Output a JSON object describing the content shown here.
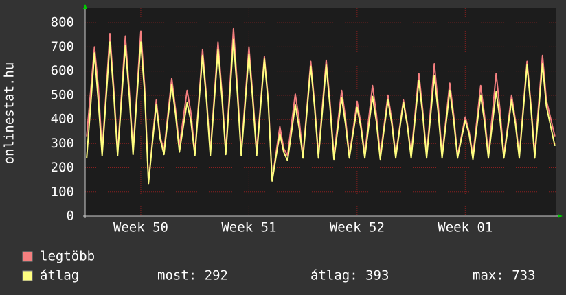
{
  "chart_data": {
    "type": "line",
    "ylabel": "onlinestat.hu",
    "xlim": [
      0,
      30.5
    ],
    "xticks": [
      {
        "value": 3.6,
        "label": "Week 50"
      },
      {
        "value": 10.6,
        "label": "Week 51"
      },
      {
        "value": 17.6,
        "label": "Week 52"
      },
      {
        "value": 24.6,
        "label": "Week 01"
      }
    ],
    "ylim": [
      0,
      860
    ],
    "yticks": [
      0,
      100,
      200,
      300,
      400,
      500,
      600,
      700,
      800
    ],
    "grid": true,
    "x": [
      0.1,
      0.35,
      0.6,
      0.85,
      1.1,
      1.35,
      1.6,
      1.85,
      2.1,
      2.35,
      2.6,
      2.85,
      3.1,
      3.35,
      3.6,
      3.85,
      4.1,
      4.35,
      4.6,
      4.85,
      5.1,
      5.35,
      5.6,
      5.85,
      6.1,
      6.35,
      6.6,
      6.85,
      7.1,
      7.35,
      7.6,
      7.85,
      8.1,
      8.35,
      8.6,
      8.85,
      9.1,
      9.35,
      9.6,
      9.85,
      10.1,
      10.35,
      10.6,
      10.85,
      11.1,
      11.35,
      11.6,
      11.85,
      12.1,
      12.35,
      12.6,
      12.85,
      13.1,
      13.35,
      13.6,
      13.85,
      14.1,
      14.35,
      14.6,
      14.85,
      15.1,
      15.35,
      15.6,
      15.85,
      16.1,
      16.35,
      16.6,
      16.85,
      17.1,
      17.35,
      17.6,
      17.85,
      18.1,
      18.35,
      18.6,
      18.85,
      19.1,
      19.35,
      19.6,
      19.85,
      20.1,
      20.35,
      20.6,
      20.85,
      21.1,
      21.35,
      21.6,
      21.85,
      22.1,
      22.35,
      22.6,
      22.85,
      23.1,
      23.35,
      23.6,
      23.85,
      24.1,
      24.35,
      24.6,
      24.85,
      25.1,
      25.35,
      25.6,
      25.85,
      26.1,
      26.35,
      26.6,
      26.85,
      27.1,
      27.35,
      27.6,
      27.85,
      28.1,
      28.35,
      28.6,
      28.85,
      29.1,
      29.35,
      29.6,
      29.85,
      30.4
    ],
    "series": [
      {
        "name": "legtöbb",
        "color": "#f47f7f",
        "values": [
          330,
          515,
          700,
          535,
          270,
          510,
          755,
          530,
          265,
          505,
          745,
          525,
          270,
          515,
          765,
          535,
          140,
          310,
          480,
          330,
          270,
          420,
          570,
          440,
          290,
          405,
          520,
          425,
          260,
          475,
          690,
          495,
          265,
          490,
          720,
          510,
          270,
          520,
          775,
          540,
          265,
          480,
          700,
          500,
          270,
          465,
          660,
          485,
          150,
          260,
          370,
          280,
          250,
          380,
          505,
          400,
          250,
          445,
          640,
          465,
          255,
          450,
          645,
          470,
          250,
          385,
          520,
          405,
          250,
          360,
          475,
          380,
          255,
          400,
          540,
          420,
          250,
          375,
          500,
          395,
          250,
          365,
          480,
          385,
          255,
          420,
          590,
          440,
          250,
          440,
          630,
          460,
          255,
          400,
          550,
          420,
          250,
          330,
          410,
          350,
          250,
          395,
          540,
          415,
          255,
          420,
          590,
          440,
          250,
          375,
          500,
          395,
          250,
          445,
          640,
          465,
          255,
          460,
          665,
          480,
          330
        ]
      },
      {
        "name": "átlag",
        "color": "#ffff80",
        "values": [
          240,
          455,
          675,
          475,
          250,
          485,
          720,
          505,
          250,
          480,
          705,
          500,
          255,
          490,
          720,
          510,
          135,
          300,
          460,
          320,
          255,
          400,
          545,
          420,
          265,
          370,
          470,
          390,
          250,
          460,
          665,
          480,
          250,
          470,
          690,
          490,
          255,
          490,
          730,
          510,
          250,
          460,
          670,
          480,
          250,
          450,
          650,
          470,
          145,
          245,
          340,
          265,
          230,
          345,
          460,
          365,
          240,
          430,
          620,
          450,
          240,
          430,
          625,
          450,
          235,
          360,
          490,
          380,
          240,
          345,
          450,
          365,
          240,
          370,
          495,
          390,
          235,
          360,
          480,
          380,
          240,
          355,
          470,
          375,
          240,
          400,
          560,
          420,
          240,
          410,
          580,
          430,
          240,
          380,
          520,
          400,
          240,
          320,
          395,
          340,
          235,
          370,
          500,
          390,
          240,
          380,
          515,
          400,
          240,
          360,
          480,
          380,
          240,
          430,
          625,
          450,
          240,
          435,
          630,
          455,
          290
        ]
      }
    ],
    "stats": [
      "most: 292",
      "átlag: 393",
      "max: 733"
    ]
  }
}
